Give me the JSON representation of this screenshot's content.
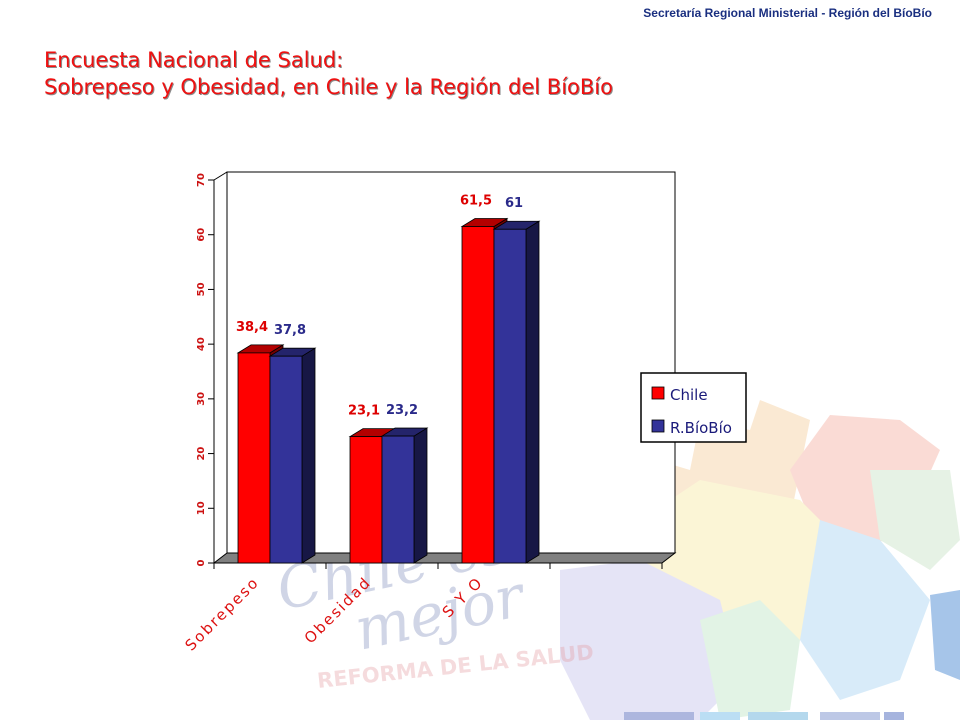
{
  "header": {
    "org": "Secretaría Regional Ministerial - Región del BíoBío"
  },
  "title": {
    "line1": "Encuesta Nacional de Salud:",
    "line2": "Sobrepeso y  Obesidad, en Chile y la Región del BíoBío"
  },
  "watermark": {
    "line1": "Chile está",
    "line2": "mejor",
    "line3": "REFORMA DE   LA SALUD"
  },
  "colors": {
    "title": "#ee1111",
    "chile": "#ff0000",
    "region": "#333399",
    "chile_label": "#dd0000",
    "region_label": "#2a2a8a",
    "tick_label": "#cc1111"
  },
  "chart_data": {
    "type": "bar",
    "categories": [
      "Sobrepeso",
      "Obesidad",
      "S Y O",
      ""
    ],
    "series": [
      {
        "name": "Chile",
        "values": [
          38.4,
          23.1,
          61.5,
          null
        ]
      },
      {
        "name": "R.BíoBío",
        "values": [
          37.8,
          23.2,
          61,
          null
        ]
      }
    ],
    "data_labels": [
      [
        "38,4",
        "23,1",
        "61,5",
        ""
      ],
      [
        "37,8",
        "23,2",
        "61",
        ""
      ]
    ],
    "yticks": [
      "0",
      "10",
      "20",
      "30",
      "40",
      "50",
      "60",
      "70"
    ],
    "ylim": [
      0,
      70
    ],
    "legend_position": "right",
    "grid": false,
    "chart3d": true
  }
}
